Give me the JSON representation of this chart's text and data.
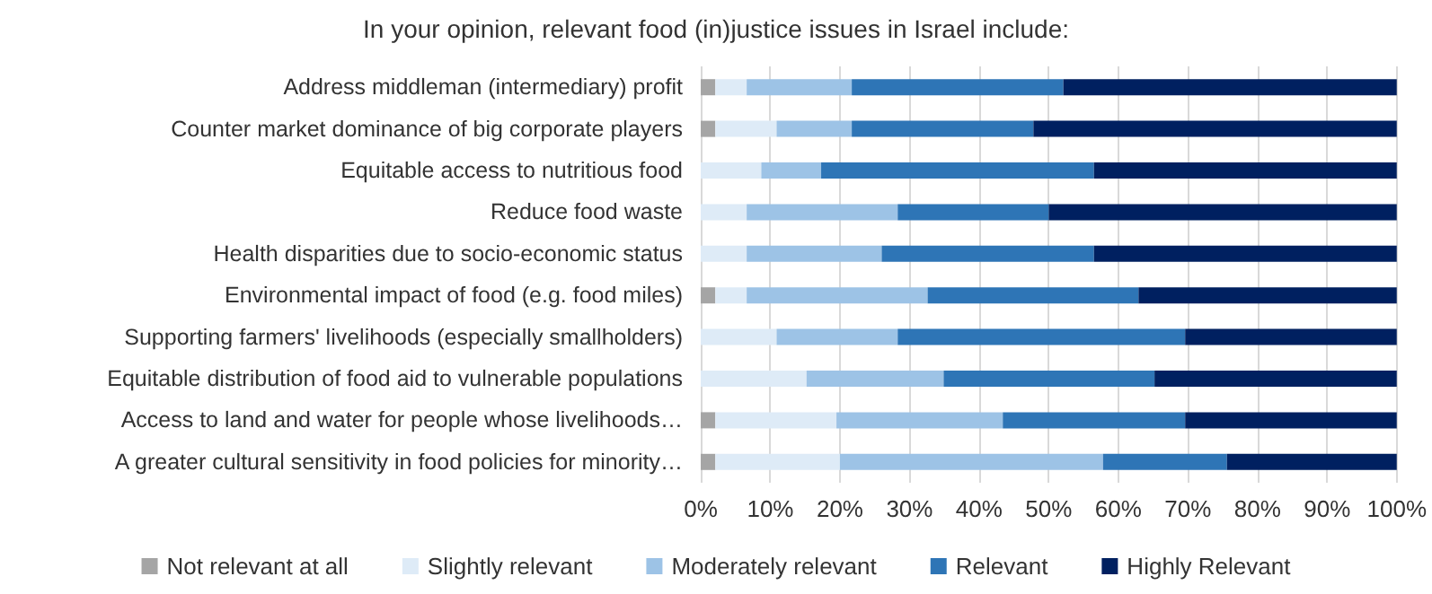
{
  "chart_data": {
    "type": "bar",
    "orientation": "horizontal",
    "stacked": true,
    "title": "In your opinion, relevant food (in)justice issues in Israel include:",
    "categories": [
      "Address middleman (intermediary) profit",
      "Counter market dominance of big corporate players",
      "Equitable access to nutritious food",
      "Reduce food waste",
      "Health disparities due to socio-economic status",
      "Environmental impact of food (e.g. food miles)",
      "Supporting farmers' livelihoods (especially smallholders)",
      "Equitable distribution of food aid to vulnerable populations",
      "Access to land and water for people whose livelihoods…",
      "A greater cultural sensitivity in food policies for minority…"
    ],
    "series": [
      {
        "name": "Not relevant at all",
        "color": "#a5a5a5",
        "values": [
          2.1,
          2.1,
          0,
          0,
          0,
          2.1,
          0,
          0,
          2.1,
          2.1
        ]
      },
      {
        "name": "Slightly relevant",
        "color": "#deebf7",
        "values": [
          4.5,
          8.8,
          8.7,
          6.6,
          6.6,
          4.5,
          10.9,
          15.2,
          17.4,
          17.9
        ]
      },
      {
        "name": "Moderately relevant",
        "color": "#9dc3e6",
        "values": [
          15.1,
          10.8,
          8.6,
          21.7,
          19.4,
          26.0,
          17.4,
          19.7,
          23.9,
          37.8
        ]
      },
      {
        "name": "Relevant",
        "color": "#2e75b6",
        "values": [
          30.4,
          26.1,
          39.2,
          21.7,
          30.5,
          30.3,
          41.3,
          30.3,
          26.2,
          17.8
        ]
      },
      {
        "name": "Highly Relevant",
        "color": "#002060",
        "values": [
          47.9,
          52.2,
          43.5,
          50.0,
          43.5,
          37.1,
          30.4,
          34.8,
          30.4,
          24.4
        ]
      }
    ],
    "xlim": [
      0,
      100
    ],
    "xticks": [
      {
        "value": 0,
        "label": "0%"
      },
      {
        "value": 10,
        "label": "10%"
      },
      {
        "value": 20,
        "label": "20%"
      },
      {
        "value": 30,
        "label": "30%"
      },
      {
        "value": 40,
        "label": "40%"
      },
      {
        "value": 50,
        "label": "50%"
      },
      {
        "value": 60,
        "label": "60%"
      },
      {
        "value": 70,
        "label": "70%"
      },
      {
        "value": 80,
        "label": "80%"
      },
      {
        "value": 90,
        "label": "90%"
      },
      {
        "value": 100,
        "label": "100%"
      }
    ],
    "grid": "x",
    "legend": "bottom"
  }
}
